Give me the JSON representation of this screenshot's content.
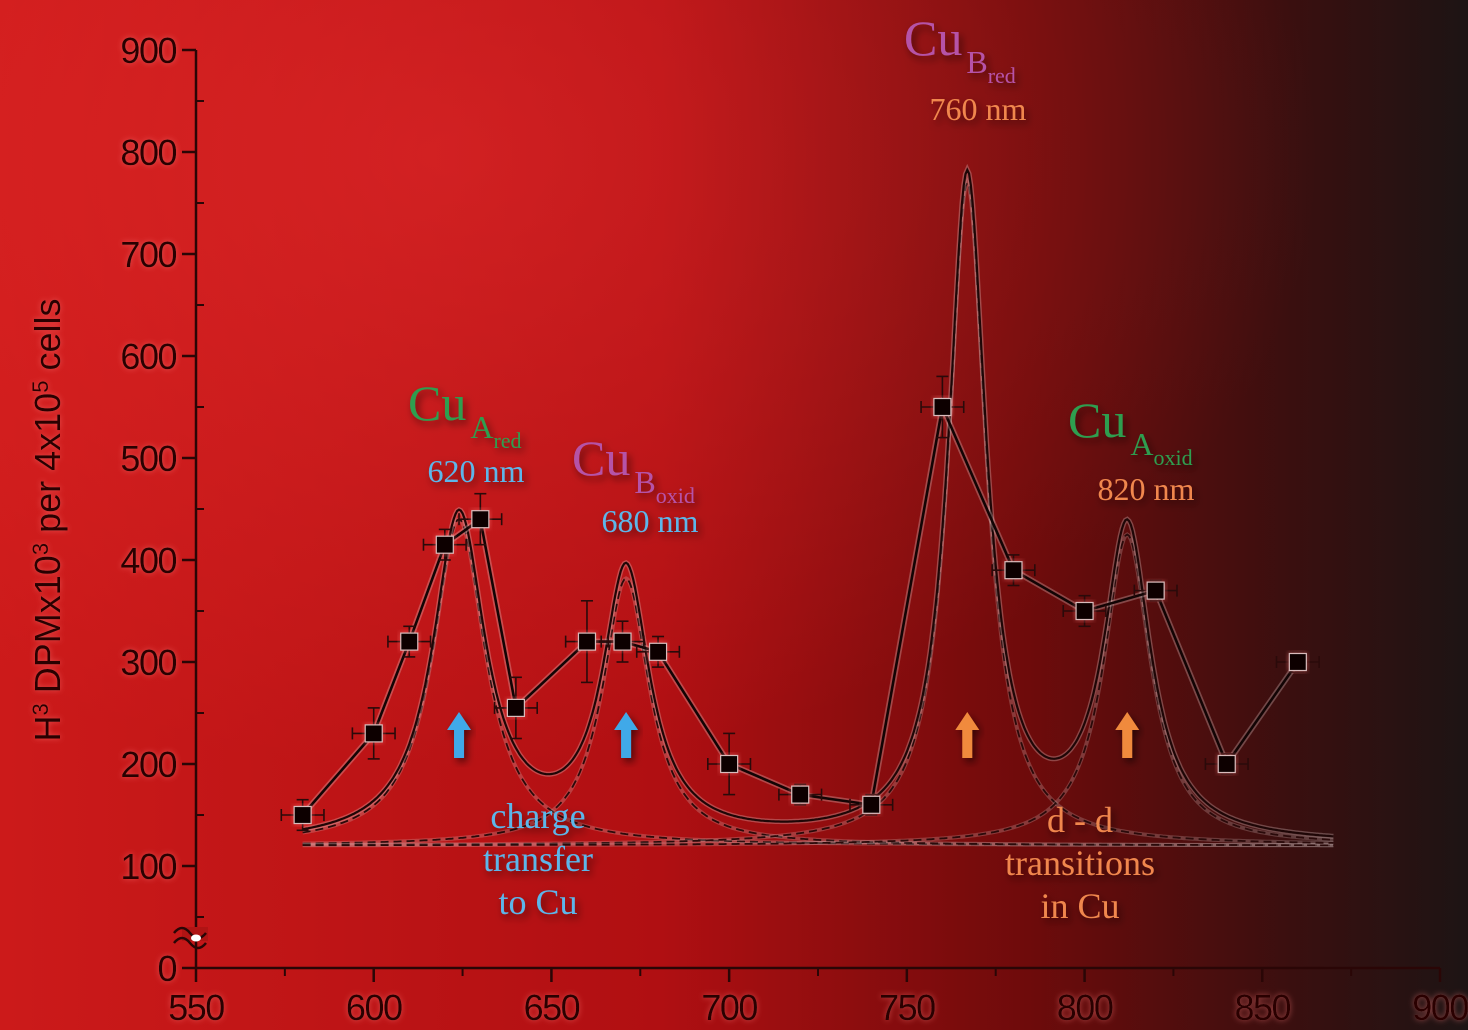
{
  "chart_data": {
    "type": "line",
    "title": "",
    "xlabel": "",
    "ylabel_parts": {
      "base": "H",
      "sup1": "3",
      "mid": " DPMx10",
      "sup2": "3",
      "mid2": " per 4x10",
      "sup3": "5",
      "end": " cells"
    },
    "xlim": [
      550,
      900
    ],
    "ylim": [
      0,
      900
    ],
    "y_axis_break": true,
    "x_ticks": [
      550,
      600,
      650,
      700,
      750,
      800,
      850,
      900
    ],
    "y_ticks": [
      0,
      100,
      200,
      300,
      400,
      500,
      600,
      700,
      800,
      900
    ],
    "grid": false,
    "series": [
      {
        "type": "data",
        "x": [
          580,
          600,
          610,
          620,
          630,
          640,
          660,
          670,
          680,
          700,
          720,
          740,
          760,
          780,
          800,
          820,
          840,
          860
        ],
        "y": [
          150,
          230,
          320,
          415,
          440,
          255,
          320,
          320,
          310,
          200,
          170,
          160,
          550,
          390,
          350,
          370,
          200,
          300
        ],
        "yerr": [
          15,
          25,
          15,
          15,
          25,
          30,
          40,
          20,
          15,
          30,
          10,
          10,
          30,
          15,
          15,
          10,
          10,
          10
        ],
        "xerr": [
          6,
          6,
          6,
          6,
          6,
          6,
          6,
          6,
          6,
          6,
          6,
          6,
          6,
          6,
          6,
          6,
          6,
          6
        ]
      }
    ],
    "fit_components": {
      "baseline": 120,
      "peaks": [
        {
          "center": 624,
          "amplitude": 320,
          "width": 9
        },
        {
          "center": 671,
          "amplitude": 262,
          "width": 8
        },
        {
          "center": 767,
          "amplitude": 650,
          "width": 6.5
        },
        {
          "center": 812,
          "amplitude": 305,
          "width": 8
        }
      ]
    },
    "annotations": [
      {
        "name": "cu-a-red",
        "main": "Cu",
        "sub": "A",
        "subsub": "red",
        "wavelength": "620 nm",
        "color_main": "#2f9e50",
        "color_wl": "#5bb6ea"
      },
      {
        "name": "cu-b-oxid",
        "main": "Cu",
        "sub": "B",
        "subsub": "oxid",
        "wavelength": "680 nm",
        "color_main": "#b553a8",
        "color_wl": "#5bb6ea"
      },
      {
        "name": "cu-b-red",
        "main": "Cu",
        "sub": "B",
        "subsub": "red",
        "wavelength": "760 nm",
        "color_main": "#b553a8",
        "color_wl": "#f0874e"
      },
      {
        "name": "cu-a-oxid",
        "main": "Cu",
        "sub": "A",
        "subsub": "oxid",
        "wavelength": "820 nm",
        "color_main": "#2f9e50",
        "color_wl": "#f0874e"
      }
    ],
    "group_labels": [
      {
        "name": "charge-transfer",
        "lines": [
          "charge",
          "transfer",
          "to Cu"
        ],
        "color": "#5bb6ea"
      },
      {
        "name": "d-d-transitions",
        "lines": [
          "d - d",
          "transitions",
          "in Cu"
        ],
        "color": "#f0874e"
      }
    ],
    "arrows": [
      {
        "x": 624,
        "color": "#3fa9e8"
      },
      {
        "x": 671,
        "color": "#3fa9e8"
      },
      {
        "x": 767,
        "color": "#f08a3c"
      },
      {
        "x": 812,
        "color": "#f08a3c"
      }
    ]
  }
}
